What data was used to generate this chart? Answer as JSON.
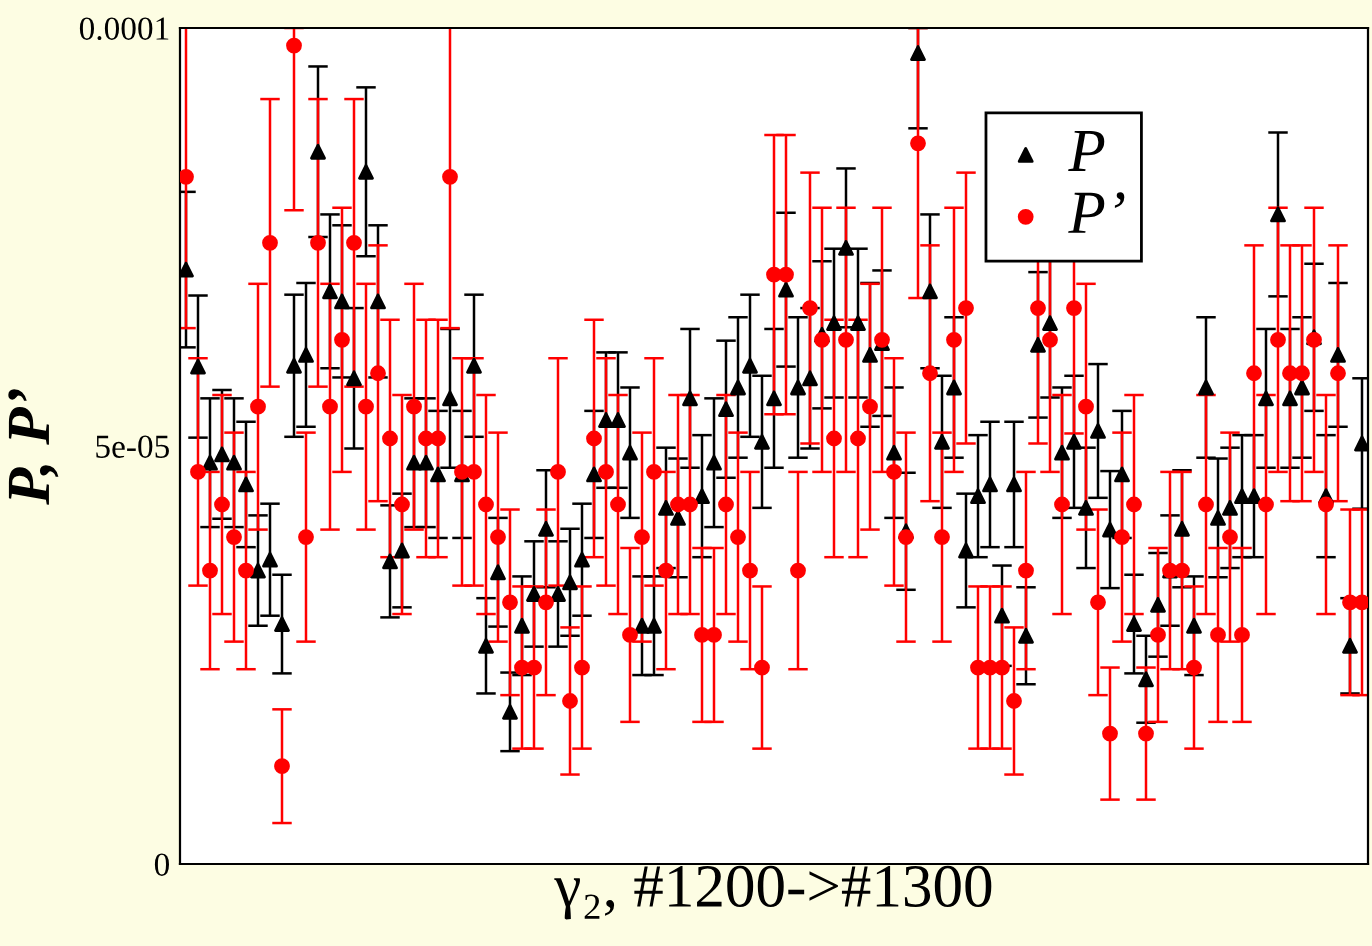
{
  "chart_data": {
    "type": "scatter",
    "xlabel": "γ₂, #1200->#1300",
    "ylabel": "P, P’",
    "categories": [
      null,
      null,
      null,
      null,
      null,
      null,
      null,
      null,
      null,
      null,
      null,
      null,
      null,
      null,
      null,
      null,
      null,
      null,
      null,
      null,
      null,
      null,
      null,
      null,
      null,
      null,
      null,
      null,
      null,
      null,
      null,
      null,
      null,
      null,
      null,
      null,
      null,
      null,
      null,
      null,
      null,
      null,
      null,
      null,
      null,
      null,
      null,
      null,
      null,
      null,
      null,
      null,
      null,
      null,
      null,
      null,
      null,
      null,
      null,
      null,
      null,
      null,
      null,
      null,
      null,
      null,
      null,
      null,
      null,
      null,
      null,
      null,
      null,
      null,
      null,
      null,
      null,
      null,
      null,
      null,
      null,
      null,
      null,
      null,
      null,
      null,
      null,
      null,
      null,
      null,
      null,
      null,
      null,
      null,
      null,
      null,
      null,
      null,
      null
    ],
    "ylim": [
      0,
      0.0001
    ],
    "yticks": [
      0,
      5e-05,
      0.0001
    ],
    "tick_labels": "y",
    "grid": false,
    "legend": "top right",
    "series": [
      {
        "name": "P",
        "color": "#000000",
        "marker": "triangle",
        "values": [
          7.11e-05,
          5.95e-05,
          4.8e-05,
          4.9e-05,
          4.8e-05,
          4.54e-05,
          3.51e-05,
          3.64e-05,
          2.87e-05,
          5.96e-05,
          6.09e-05,
          8.52e-05,
          6.85e-05,
          6.73e-05,
          5.81e-05,
          8.28e-05,
          6.73e-05,
          3.62e-05,
          3.75e-05,
          4.8e-05,
          4.8e-05,
          4.66e-05,
          5.57e-05,
          4.66e-05,
          5.96e-05,
          2.61e-05,
          3.49e-05,
          1.82e-05,
          2.85e-05,
          3.23e-05,
          4.01e-05,
          3.23e-05,
          3.37e-05,
          3.64e-05,
          4.66e-05,
          5.31e-05,
          5.31e-05,
          4.92e-05,
          2.85e-05,
          2.85e-05,
          4.26e-05,
          4.14e-05,
          5.57e-05,
          4.4e-05,
          4.8e-05,
          5.44e-05,
          5.7e-05,
          5.96e-05,
          5.05e-05,
          5.57e-05,
          6.87e-05,
          5.7e-05,
          5.81e-05,
          6.33e-05,
          6.47e-05,
          7.37e-05,
          6.47e-05,
          6.09e-05,
          6.23e-05,
          4.92e-05,
          3.98e-05,
          9.7e-05,
          6.85e-05,
          5.05e-05,
          5.7e-05,
          3.75e-05,
          4.4e-05,
          4.54e-05,
          2.97e-05,
          4.54e-05,
          2.73e-05,
          6.21e-05,
          6.47e-05,
          4.92e-05,
          5.05e-05,
          4.26e-05,
          5.18e-05,
          4e-05,
          4.66e-05,
          2.87e-05,
          2.21e-05,
          3.1e-05,
          3.51e-05,
          4.01e-05,
          2.85e-05,
          5.7e-05,
          4.14e-05,
          4.26e-05,
          4.4e-05,
          4.4e-05,
          5.57e-05,
          7.77e-05,
          5.57e-05,
          5.7e-05,
          6.3e-05,
          4.4e-05,
          6.09e-05,
          2.61e-05,
          5.03e-05
        ],
        "errors": [
          9.3e-06,
          8.5e-06,
          7.7e-06,
          7.7e-06,
          7.7e-06,
          7.5e-06,
          6.6e-06,
          6.7e-06,
          5.9e-06,
          8.5e-06,
          8.6e-06,
          1.02e-05,
          9.2e-06,
          9.1e-06,
          8.4e-06,
          1.01e-05,
          9.1e-06,
          6.7e-06,
          6.8e-06,
          7.7e-06,
          7.7e-06,
          7.6e-06,
          8.3e-06,
          7.6e-06,
          8.5e-06,
          5.7e-06,
          6.5e-06,
          4.7e-06,
          5.9e-06,
          6.3e-06,
          7e-06,
          6.3e-06,
          6.4e-06,
          6.7e-06,
          7.6e-06,
          8.1e-06,
          8.1e-06,
          7.8e-06,
          5.9e-06,
          5.9e-06,
          7.2e-06,
          7.1e-06,
          8.3e-06,
          7.3e-06,
          7.7e-06,
          8.2e-06,
          8.4e-06,
          8.5e-06,
          7.9e-06,
          8.3e-06,
          9.2e-06,
          8.4e-06,
          8.4e-06,
          8.8e-06,
          8.9e-06,
          9.5e-06,
          8.9e-06,
          8.6e-06,
          8.7e-06,
          7.8e-06,
          7e-06,
          [
            8.8e-05,
            0.0001
          ],
          9.2e-06,
          7.9e-06,
          8.4e-06,
          6.8e-06,
          7.3e-06,
          7.5e-06,
          6e-06,
          7.5e-06,
          5.8e-06,
          8.7e-06,
          8.9e-06,
          7.8e-06,
          7.9e-06,
          7.2e-06,
          8e-06,
          7e-06,
          7.6e-06,
          5.9e-06,
          5.2e-06,
          6.2e-06,
          6.6e-06,
          7e-06,
          5.9e-06,
          8.4e-06,
          7.1e-06,
          7.2e-06,
          7.3e-06,
          7.3e-06,
          8.3e-06,
          9.8e-06,
          8.3e-06,
          8.4e-06,
          8.8e-06,
          7.3e-06,
          8.6e-06,
          5.7e-06,
          7.8e-06
        ]
      },
      {
        "name": "P’",
        "color": "#ff0000",
        "marker": "circle",
        "values": [
          8.22e-05,
          4.69e-05,
          3.51e-05,
          4.3e-05,
          3.91e-05,
          3.51e-05,
          5.47e-05,
          7.43e-05,
          1.17e-05,
          9.79e-05,
          3.91e-05,
          7.43e-05,
          5.47e-05,
          6.27e-05,
          7.43e-05,
          5.47e-05,
          5.87e-05,
          5.09e-05,
          4.3e-05,
          5.47e-05,
          5.09e-05,
          5.09e-05,
          8.22e-05,
          4.69e-05,
          4.69e-05,
          4.3e-05,
          3.91e-05,
          3.13e-05,
          2.35e-05,
          2.35e-05,
          3.13e-05,
          4.69e-05,
          1.95e-05,
          2.35e-05,
          5.09e-05,
          4.69e-05,
          4.3e-05,
          2.74e-05,
          3.91e-05,
          4.69e-05,
          3.51e-05,
          4.3e-05,
          4.3e-05,
          2.74e-05,
          2.74e-05,
          4.3e-05,
          3.91e-05,
          3.51e-05,
          2.35e-05,
          7.05e-05,
          7.05e-05,
          3.51e-05,
          6.65e-05,
          6.27e-05,
          5.09e-05,
          6.27e-05,
          5.09e-05,
          5.47e-05,
          6.27e-05,
          4.69e-05,
          3.91e-05,
          8.62e-05,
          5.87e-05,
          3.91e-05,
          6.27e-05,
          6.65e-05,
          2.35e-05,
          2.35e-05,
          2.35e-05,
          1.95e-05,
          3.51e-05,
          6.65e-05,
          6.27e-05,
          4.3e-05,
          6.65e-05,
          5.47e-05,
          3.13e-05,
          1.56e-05,
          3.91e-05,
          4.3e-05,
          1.56e-05,
          2.74e-05,
          3.51e-05,
          3.51e-05,
          2.35e-05,
          4.3e-05,
          2.74e-05,
          3.91e-05,
          2.74e-05,
          5.87e-05,
          4.3e-05,
          6.27e-05,
          5.87e-05,
          5.87e-05,
          6.27e-05,
          4.3e-05,
          5.87e-05,
          3.13e-05,
          3.13e-05
        ],
        "errors": [
          1.81e-05,
          1.36e-05,
          1.18e-05,
          1.31e-05,
          1.25e-05,
          1.18e-05,
          1.47e-05,
          1.72e-05,
          6.8e-06,
          [
            7.82e-05,
            0.0001
          ],
          1.25e-05,
          1.72e-05,
          1.47e-05,
          1.58e-05,
          1.72e-05,
          1.47e-05,
          1.53e-05,
          1.42e-05,
          1.31e-05,
          1.47e-05,
          1.42e-05,
          1.42e-05,
          1.81e-05,
          1.36e-05,
          1.36e-05,
          1.31e-05,
          1.25e-05,
          1.11e-05,
          9.7e-06,
          9.7e-06,
          1.11e-05,
          1.36e-05,
          8.8e-06,
          9.7e-06,
          1.42e-05,
          1.36e-05,
          1.31e-05,
          1.04e-05,
          1.25e-05,
          1.36e-05,
          1.18e-05,
          1.31e-05,
          1.31e-05,
          1.04e-05,
          1.04e-05,
          1.31e-05,
          1.25e-05,
          1.18e-05,
          9.7e-06,
          1.67e-05,
          1.67e-05,
          1.18e-05,
          1.62e-05,
          1.58e-05,
          1.42e-05,
          1.58e-05,
          1.42e-05,
          1.47e-05,
          1.58e-05,
          1.36e-05,
          1.25e-05,
          [
            6.77e-05,
            0.0001
          ],
          1.53e-05,
          1.25e-05,
          1.58e-05,
          1.62e-05,
          9.7e-06,
          9.7e-06,
          9.7e-06,
          8.8e-06,
          1.18e-05,
          1.62e-05,
          1.58e-05,
          1.31e-05,
          1.5e-05,
          1.47e-05,
          1.11e-05,
          7.9e-06,
          1.25e-05,
          1.31e-05,
          7.9e-06,
          1.04e-05,
          1.18e-05,
          1.18e-05,
          9.7e-06,
          1.31e-05,
          1.04e-05,
          1.25e-05,
          1.04e-05,
          1.53e-05,
          1.31e-05,
          1.58e-05,
          1.53e-05,
          1.53e-05,
          1.58e-05,
          1.31e-05,
          1.53e-05,
          1.11e-05,
          1.11e-05
        ]
      }
    ]
  }
}
